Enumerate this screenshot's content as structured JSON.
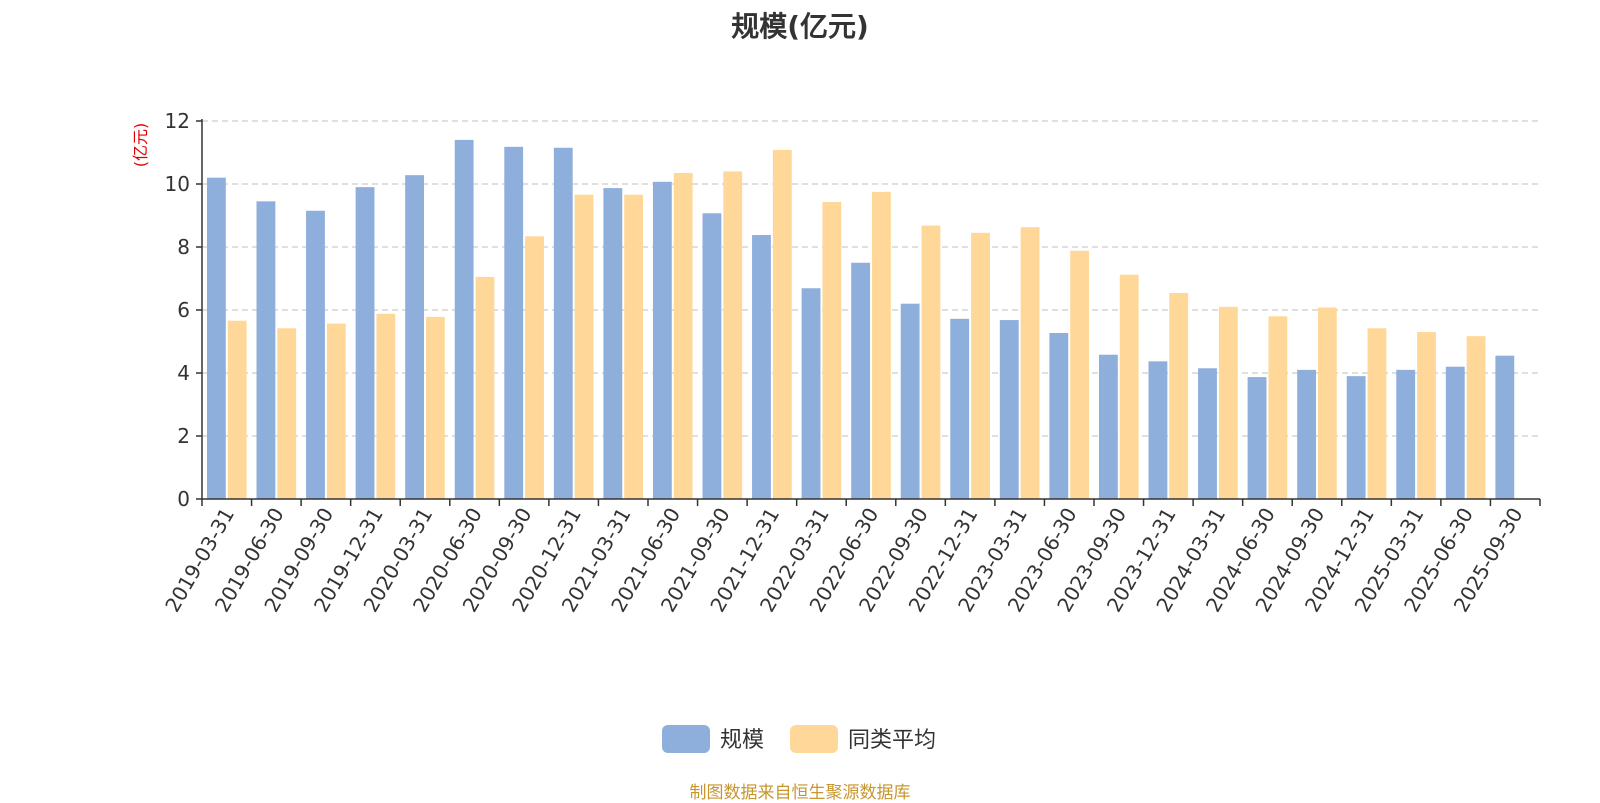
{
  "chart_data": {
    "type": "bar",
    "title": "规模(亿元)",
    "ylabel": "(亿元)",
    "ylim": [
      0,
      12
    ],
    "yticks": [
      0,
      2,
      4,
      6,
      8,
      10,
      12
    ],
    "grid": true,
    "legend_position": "bottom-center",
    "categories": [
      "2019-03-31",
      "2019-06-30",
      "2019-09-30",
      "2019-12-31",
      "2020-03-31",
      "2020-06-30",
      "2020-09-30",
      "2020-12-31",
      "2021-03-31",
      "2021-06-30",
      "2021-09-30",
      "2021-12-31",
      "2022-03-31",
      "2022-06-30",
      "2022-09-30",
      "2022-12-31",
      "2023-03-31",
      "2023-06-30",
      "2023-09-30",
      "2023-12-31",
      "2024-03-31",
      "2024-06-30",
      "2024-09-30",
      "2024-12-31",
      "2025-03-31",
      "2025-06-30",
      "2025-09-30"
    ],
    "series": [
      {
        "name": "规模",
        "color": "#8eaedb",
        "values": [
          10.2,
          9.45,
          9.15,
          9.9,
          10.28,
          11.4,
          11.18,
          11.15,
          9.87,
          10.07,
          9.07,
          8.38,
          6.69,
          7.5,
          6.2,
          5.72,
          5.68,
          5.27,
          4.58,
          4.37,
          4.15,
          3.87,
          4.1,
          3.9,
          4.1,
          4.2,
          4.55
        ]
      },
      {
        "name": "同类平均",
        "color": "#ffd899",
        "values": [
          5.66,
          5.42,
          5.57,
          5.88,
          5.78,
          7.05,
          8.34,
          9.66,
          9.66,
          10.35,
          10.4,
          11.08,
          9.43,
          9.75,
          8.68,
          8.45,
          8.63,
          7.88,
          7.12,
          6.54,
          6.1,
          5.8,
          6.08,
          5.42,
          5.3,
          5.17,
          null
        ]
      }
    ]
  },
  "footer": "制图数据来自恒生聚源数据库"
}
